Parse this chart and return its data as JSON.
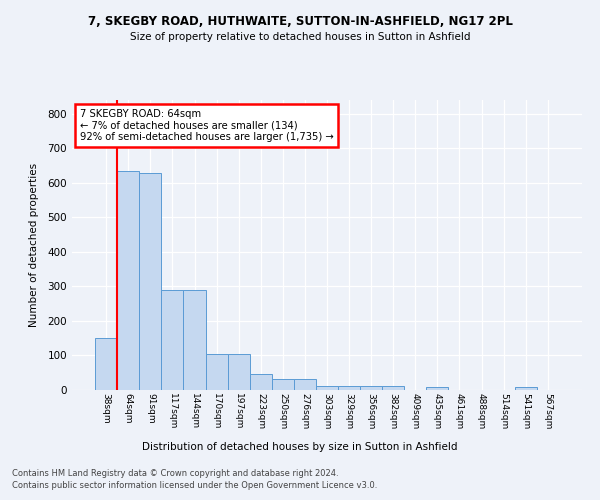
{
  "title1": "7, SKEGBY ROAD, HUTHWAITE, SUTTON-IN-ASHFIELD, NG17 2PL",
  "title2": "Size of property relative to detached houses in Sutton in Ashfield",
  "xlabel": "Distribution of detached houses by size in Sutton in Ashfield",
  "ylabel": "Number of detached properties",
  "categories": [
    "38sqm",
    "64sqm",
    "91sqm",
    "117sqm",
    "144sqm",
    "170sqm",
    "197sqm",
    "223sqm",
    "250sqm",
    "276sqm",
    "303sqm",
    "329sqm",
    "356sqm",
    "382sqm",
    "409sqm",
    "435sqm",
    "461sqm",
    "488sqm",
    "514sqm",
    "541sqm",
    "567sqm"
  ],
  "values": [
    150,
    635,
    630,
    290,
    290,
    103,
    103,
    46,
    32,
    32,
    12,
    12,
    12,
    12,
    0,
    10,
    0,
    0,
    0,
    10,
    0
  ],
  "bar_color": "#c5d8f0",
  "bar_edge_color": "#5b9bd5",
  "red_line_index": 1,
  "annotation_text": "7 SKEGBY ROAD: 64sqm\n← 7% of detached houses are smaller (134)\n92% of semi-detached houses are larger (1,735) →",
  "annotation_box_color": "white",
  "annotation_box_edge": "red",
  "footer1": "Contains HM Land Registry data © Crown copyright and database right 2024.",
  "footer2": "Contains public sector information licensed under the Open Government Licence v3.0.",
  "background_color": "#eef2f9",
  "ylim": [
    0,
    840
  ],
  "yticks": [
    0,
    100,
    200,
    300,
    400,
    500,
    600,
    700,
    800
  ]
}
